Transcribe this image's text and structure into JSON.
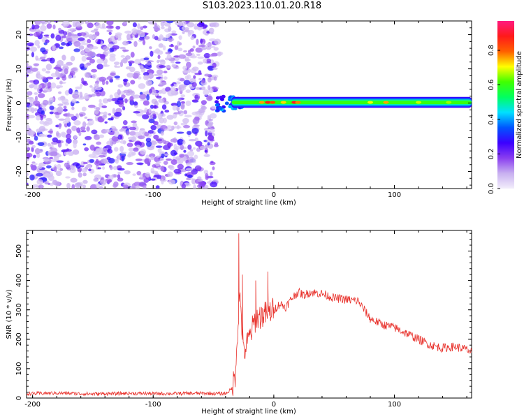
{
  "title": "S103.2023.110.01.20.R18",
  "colors": {
    "axis": "#000000",
    "snr_line": "#e8302a",
    "background": "#ffffff"
  },
  "chart_data": [
    {
      "type": "heatmap",
      "title": "S103.2023.110.01.20.R18",
      "xlabel": "Height of straight line (km)",
      "ylabel": "Frequency (Hz)",
      "xlim": [
        -205,
        164
      ],
      "ylim": [
        -25,
        24
      ],
      "xticks": [
        -200,
        -100,
        0,
        100
      ],
      "yticks": [
        -20,
        -10,
        0,
        10,
        20
      ],
      "colorbar": {
        "label": "Normalized spectral amplitude",
        "range": [
          0,
          0.97
        ],
        "ticks": [
          "0.0",
          "0.2",
          "0.4",
          "0.6",
          "0.8"
        ],
        "stops": [
          "#f3eefb",
          "#c8b0f0",
          "#8a3ef0",
          "#3b00ff",
          "#0055ff",
          "#00e0ff",
          "#00ff60",
          "#40ff00",
          "#ffff00",
          "#ff6000",
          "#ff1a1a",
          "#ff1a80"
        ]
      },
      "regions": [
        {
          "name": "noise",
          "x_range": [
            -205,
            -50
          ],
          "freq_range": [
            -25,
            24
          ],
          "amplitude": [
            0.05,
            0.3
          ]
        },
        {
          "name": "signal_band",
          "x_range": [
            -50,
            164
          ],
          "center_freq": 0.2,
          "half_width": 1.6,
          "amplitude": [
            0.3,
            0.95
          ]
        }
      ]
    },
    {
      "type": "line",
      "xlabel": "Height of straight line (km)",
      "ylabel": "SNR (10 * v/v)",
      "xlim": [
        -205,
        164
      ],
      "ylim": [
        0,
        570
      ],
      "xticks": [
        -200,
        -100,
        0,
        100
      ],
      "yticks": [
        0,
        100,
        200,
        300,
        400,
        500
      ],
      "series": [
        {
          "x": [
            -205,
            -180,
            -150,
            -120,
            -90,
            -60,
            -40,
            -35,
            -32,
            -30,
            -28,
            -25,
            -20,
            -15,
            -10,
            -5,
            0,
            5,
            10,
            15,
            20,
            25,
            30,
            40,
            50,
            60,
            70,
            75,
            80,
            90,
            100,
            110,
            120,
            130,
            140,
            150,
            160,
            164
          ],
          "y": [
            15,
            17,
            14,
            16,
            15,
            16,
            15,
            30,
            80,
            230,
            350,
            150,
            210,
            270,
            280,
            290,
            300,
            320,
            310,
            340,
            360,
            350,
            360,
            355,
            340,
            335,
            330,
            300,
            270,
            250,
            240,
            220,
            200,
            180,
            170,
            175,
            165,
            155
          ],
          "spikes": [
            [
              -29,
              560
            ],
            [
              -26,
              420
            ],
            [
              -5,
              430
            ],
            [
              -15,
              400
            ]
          ]
        }
      ]
    }
  ]
}
